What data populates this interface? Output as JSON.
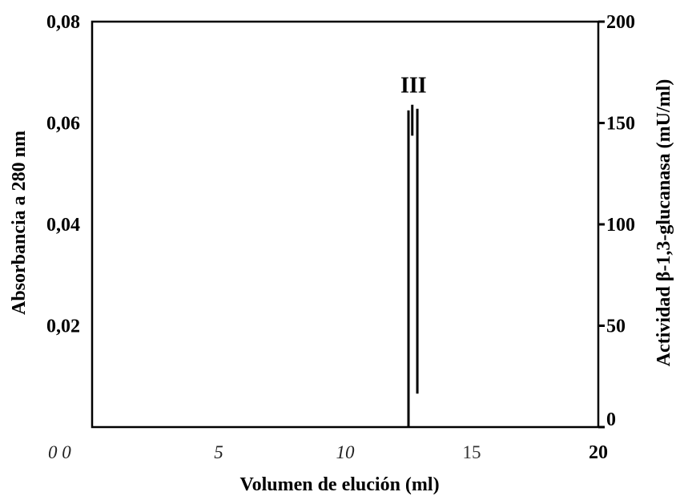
{
  "chart_data": {
    "type": "line",
    "xlabel": "Volumen de elución (ml)",
    "ylabel_left": "Absorbancia a 280 nm",
    "ylabel_right": "Actividad β-1,3-glucanasa (mU/ml)",
    "xlim": [
      0,
      20
    ],
    "ylim_left": [
      0,
      0.08
    ],
    "ylim_right": [
      0,
      200
    ],
    "x_ticks": [
      {
        "value": 0,
        "label": "0 0",
        "style": "italic"
      },
      {
        "value": 5,
        "label": "5",
        "style": "italic"
      },
      {
        "value": 10,
        "label": "10",
        "style": "italic"
      },
      {
        "value": 15,
        "label": "15",
        "style": "plain"
      },
      {
        "value": 20,
        "label": "20",
        "style": "bold"
      }
    ],
    "y_ticks_left": [
      {
        "value": 0.02,
        "label": "0,02"
      },
      {
        "value": 0.04,
        "label": "0,04"
      },
      {
        "value": 0.06,
        "label": "0,06"
      },
      {
        "value": 0.08,
        "label": "0,08"
      }
    ],
    "y_ticks_right": [
      {
        "value": 0,
        "label": "0"
      },
      {
        "value": 50,
        "label": "50"
      },
      {
        "value": 100,
        "label": "100"
      },
      {
        "value": 150,
        "label": "150"
      },
      {
        "value": 200,
        "label": "200"
      }
    ],
    "series": [
      {
        "values": [
          [
            12.5,
            0
          ],
          [
            12.5,
            0.0625
          ]
        ]
      },
      {
        "values": [
          [
            12.65,
            0.0575
          ],
          [
            12.65,
            0.0636
          ]
        ]
      },
      {
        "values": [
          [
            12.85,
            0.0066
          ],
          [
            12.85,
            0.0628
          ]
        ]
      }
    ],
    "annotations": [
      {
        "text": "III",
        "x": 12.7,
        "y": 0.066
      }
    ],
    "grid": false
  }
}
